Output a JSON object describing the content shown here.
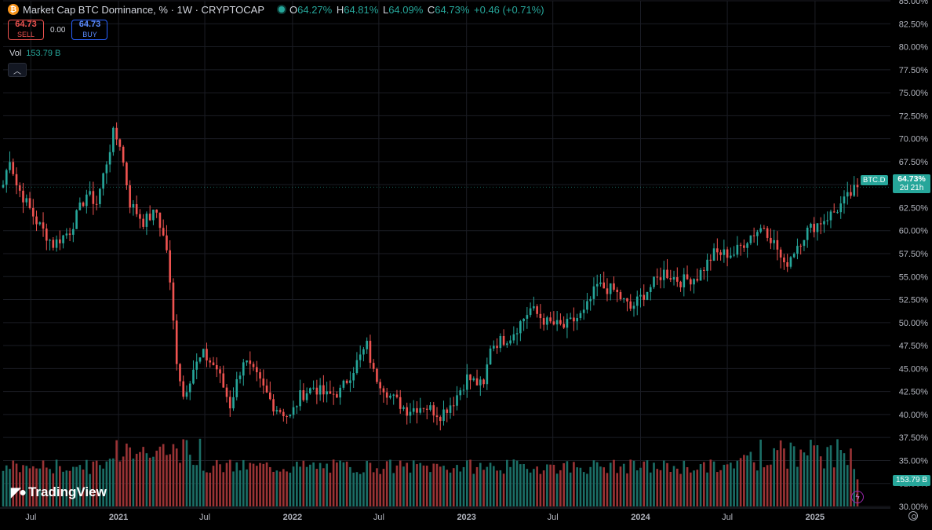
{
  "header": {
    "title": "Market Cap BTC Dominance, % · 1W · CRYPTOCAP",
    "ohlc": [
      {
        "label": "O",
        "value": "64.27%"
      },
      {
        "label": "H",
        "value": "64.81%"
      },
      {
        "label": "L",
        "value": "64.09%"
      },
      {
        "label": "C",
        "value": "64.73%"
      }
    ],
    "change": "+0.46 (+0.71%)"
  },
  "trade": {
    "sell_price": "64.73",
    "sell_label": "SELL",
    "spread": "0.00",
    "buy_price": "64.73",
    "buy_label": "BUY"
  },
  "volume": {
    "label": "Vol",
    "value": "153.79 B"
  },
  "price_tag": {
    "symbol": "BTC.D",
    "price": "64.73%",
    "countdown": "2d 21h"
  },
  "volume_tag": "153.79 B",
  "logo_text": "TradingView",
  "colors": {
    "up": "#26a69a",
    "down": "#ef5350",
    "up_vol": "#1b6e66",
    "down_vol": "#9a3335",
    "grid": "#1b1d24",
    "axis_text": "#b2b5be"
  },
  "chart_data": {
    "type": "candlestick",
    "y_axis": {
      "min": 30,
      "max": 85,
      "step": 2.5,
      "unit": "%",
      "ticks": [
        "85.00%",
        "82.50%",
        "80.00%",
        "77.50%",
        "75.00%",
        "72.50%",
        "70.00%",
        "67.50%",
        "65.00%",
        "62.50%",
        "60.00%",
        "57.50%",
        "55.00%",
        "52.50%",
        "50.00%",
        "47.50%",
        "45.00%",
        "42.50%",
        "40.00%",
        "37.50%",
        "35.00%",
        "32.50%",
        "30.00%"
      ]
    },
    "x_axis": {
      "start": "2020-05-04",
      "end": "2025-03-31",
      "labels": [
        {
          "text": "Jul",
          "date": "2020-07-01"
        },
        {
          "text": "2021",
          "date": "2021-01-01"
        },
        {
          "text": "Jul",
          "date": "2021-07-01"
        },
        {
          "text": "2022",
          "date": "2022-01-01"
        },
        {
          "text": "Jul",
          "date": "2022-07-01"
        },
        {
          "text": "2023",
          "date": "2023-01-01"
        },
        {
          "text": "Jul",
          "date": "2023-07-01"
        },
        {
          "text": "2024",
          "date": "2024-01-01"
        },
        {
          "text": "Jul",
          "date": "2024-07-01"
        },
        {
          "text": "2025",
          "date": "2025-01-01"
        }
      ]
    },
    "anchors": [
      {
        "date": "2020-05-04",
        "value": 65
      },
      {
        "date": "2020-05-18",
        "value": 68
      },
      {
        "date": "2020-06-01",
        "value": 65
      },
      {
        "date": "2020-07-13",
        "value": 61
      },
      {
        "date": "2020-08-17",
        "value": 58.5
      },
      {
        "date": "2020-09-21",
        "value": 60
      },
      {
        "date": "2020-10-26",
        "value": 64
      },
      {
        "date": "2020-11-16",
        "value": 63
      },
      {
        "date": "2020-12-21",
        "value": 70.5
      },
      {
        "date": "2021-01-04",
        "value": 69.5
      },
      {
        "date": "2021-01-25",
        "value": 63
      },
      {
        "date": "2021-02-22",
        "value": 61
      },
      {
        "date": "2021-03-22",
        "value": 62
      },
      {
        "date": "2021-04-12",
        "value": 58
      },
      {
        "date": "2021-05-03",
        "value": 46
      },
      {
        "date": "2021-05-17",
        "value": 42
      },
      {
        "date": "2021-06-07",
        "value": 45
      },
      {
        "date": "2021-06-28",
        "value": 46.5
      },
      {
        "date": "2021-07-26",
        "value": 45
      },
      {
        "date": "2021-08-23",
        "value": 41
      },
      {
        "date": "2021-09-20",
        "value": 46
      },
      {
        "date": "2021-10-18",
        "value": 44
      },
      {
        "date": "2021-11-22",
        "value": 41
      },
      {
        "date": "2021-12-27",
        "value": 39.7
      },
      {
        "date": "2022-01-17",
        "value": 42
      },
      {
        "date": "2022-02-14",
        "value": 43
      },
      {
        "date": "2022-03-14",
        "value": 42
      },
      {
        "date": "2022-04-11",
        "value": 42.5
      },
      {
        "date": "2022-05-09",
        "value": 45
      },
      {
        "date": "2022-06-06",
        "value": 47.5
      },
      {
        "date": "2022-06-20",
        "value": 44.5
      },
      {
        "date": "2022-07-25",
        "value": 42
      },
      {
        "date": "2022-08-29",
        "value": 40.5
      },
      {
        "date": "2022-10-03",
        "value": 41
      },
      {
        "date": "2022-11-07",
        "value": 40
      },
      {
        "date": "2022-12-05",
        "value": 41.5
      },
      {
        "date": "2023-01-02",
        "value": 44
      },
      {
        "date": "2023-02-06",
        "value": 43
      },
      {
        "date": "2023-02-20",
        "value": 47.5
      },
      {
        "date": "2023-04-03",
        "value": 48.5
      },
      {
        "date": "2023-05-15",
        "value": 51.5
      },
      {
        "date": "2023-06-19",
        "value": 50
      },
      {
        "date": "2023-07-24",
        "value": 49.5
      },
      {
        "date": "2023-09-04",
        "value": 51
      },
      {
        "date": "2023-10-02",
        "value": 54
      },
      {
        "date": "2023-11-06",
        "value": 53.5
      },
      {
        "date": "2023-12-11",
        "value": 51.5
      },
      {
        "date": "2024-01-15",
        "value": 53.5
      },
      {
        "date": "2024-02-19",
        "value": 55.5
      },
      {
        "date": "2024-03-25",
        "value": 54.5
      },
      {
        "date": "2024-04-29",
        "value": 55
      },
      {
        "date": "2024-06-03",
        "value": 57.5
      },
      {
        "date": "2024-07-15",
        "value": 57.5
      },
      {
        "date": "2024-08-19",
        "value": 59.5
      },
      {
        "date": "2024-09-16",
        "value": 60.5
      },
      {
        "date": "2024-10-14",
        "value": 58
      },
      {
        "date": "2024-10-28",
        "value": 56
      },
      {
        "date": "2024-11-25",
        "value": 58.5
      },
      {
        "date": "2024-12-16",
        "value": 60
      },
      {
        "date": "2025-01-13",
        "value": 61
      },
      {
        "date": "2025-02-10",
        "value": 62
      },
      {
        "date": "2025-03-31",
        "value": 64.73
      }
    ],
    "volume_scale_max": 160,
    "last_volume": 153.79,
    "last_close": 64.73
  }
}
